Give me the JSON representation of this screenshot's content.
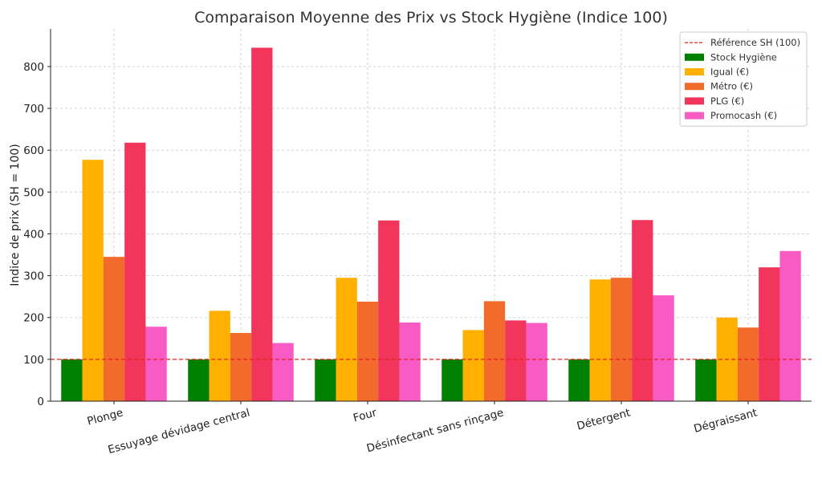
{
  "chart_data": {
    "type": "bar",
    "title": "Comparaison Moyenne des Prix vs Stock Hygiène (Indice 100)",
    "xlabel": "",
    "ylabel": "Indice de prix (SH = 100)",
    "ylim": [
      0,
      890
    ],
    "yticks": [
      0,
      100,
      200,
      300,
      400,
      500,
      600,
      700,
      800
    ],
    "grid": true,
    "legend_position": "top-right",
    "categories": [
      "Plonge",
      "Essuyage dévidage central",
      "Four",
      "Désinfectant sans rinçage",
      "Détergent",
      "Dégraissant"
    ],
    "series": [
      {
        "name": "Stock Hygiène",
        "color": "#008000",
        "values": [
          100,
          100,
          100,
          100,
          100,
          100
        ]
      },
      {
        "name": "Igual (€)",
        "color": "#FFB000",
        "values": [
          577,
          216,
          295,
          170,
          291,
          200
        ]
      },
      {
        "name": "Métro (€)",
        "color": "#F26B2A",
        "values": [
          345,
          163,
          238,
          239,
          295,
          176
        ]
      },
      {
        "name": "PLG (€)",
        "color": "#F2355B",
        "values": [
          618,
          845,
          432,
          193,
          433,
          320
        ]
      },
      {
        "name": "Promocash (€)",
        "color": "#F95BC4",
        "values": [
          178,
          139,
          188,
          187,
          253,
          359
        ]
      }
    ],
    "reference_line": {
      "name": "Référence SH (100)",
      "value": 100,
      "color": "#E62020"
    }
  }
}
